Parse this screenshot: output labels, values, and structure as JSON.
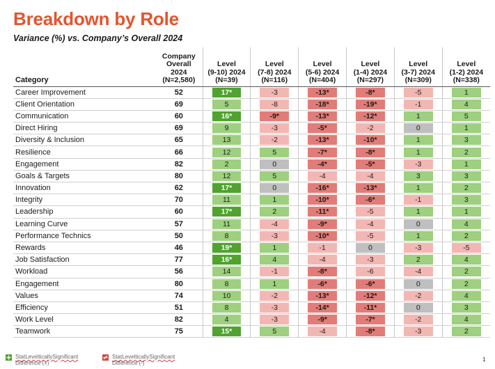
{
  "chart_data": {
    "type": "table",
    "title": "Breakdown by Role",
    "subtitle": "Variance (%) vs. Company’s Overall 2024",
    "category_header": "Category",
    "overall_header": [
      "Company",
      "Overall",
      "2024",
      "(N=2,580)"
    ],
    "level_headers": [
      [
        "Level",
        "(9-10) 2024",
        "(N=39)"
      ],
      [
        "Level",
        "(7-8) 2024",
        "(N=116)"
      ],
      [
        "Level",
        "(5-6) 2024",
        "(N=404)"
      ],
      [
        "Level",
        "(1-4) 2024",
        "(N=297)"
      ],
      [
        "Level",
        "(3-7) 2024",
        "(N=309)"
      ],
      [
        "Level",
        "(1-2) 2024",
        "(N=338)"
      ]
    ],
    "rows": [
      {
        "category": "Career Improvement",
        "overall": "52",
        "values": [
          "17*",
          "-3",
          "-13*",
          "-8*",
          "-5",
          "1"
        ]
      },
      {
        "category": "Client Orientation",
        "overall": "69",
        "values": [
          "5",
          "-8",
          "-18*",
          "-19*",
          "-1",
          "4"
        ]
      },
      {
        "category": "Communication",
        "overall": "60",
        "values": [
          "16*",
          "-9*",
          "-13*",
          "-12*",
          "1",
          "5"
        ]
      },
      {
        "category": "Direct Hiring",
        "overall": "69",
        "values": [
          "9",
          "-3",
          "-5*",
          "-2",
          "0",
          "1"
        ]
      },
      {
        "category": "Diversity & Inclusion",
        "overall": "65",
        "values": [
          "13",
          "-2",
          "-13*",
          "-10*",
          "1",
          "3"
        ]
      },
      {
        "category": "Resilience",
        "overall": "66",
        "values": [
          "12",
          "5",
          "-7*",
          "-8*",
          "1",
          "2"
        ]
      },
      {
        "category": "Engagement",
        "overall": "82",
        "values": [
          "2",
          "0",
          "-4*",
          "-5*",
          "-3",
          "1"
        ]
      },
      {
        "category": "Goals & Targets",
        "overall": "80",
        "values": [
          "12",
          "5",
          "-4",
          "-4",
          "3",
          "3"
        ]
      },
      {
        "category": "Innovation",
        "overall": "62",
        "values": [
          "17*",
          "0",
          "-16*",
          "-13*",
          "1",
          "2"
        ]
      },
      {
        "category": "Integrity",
        "overall": "70",
        "values": [
          "11",
          "1",
          "-10*",
          "-6*",
          "-1",
          "3"
        ]
      },
      {
        "category": "Leadership",
        "overall": "60",
        "values": [
          "17*",
          "2",
          "-11*",
          "-5",
          "1",
          "1"
        ]
      },
      {
        "category": "Learning Curve",
        "overall": "57",
        "values": [
          "11",
          "-4",
          "-9*",
          "-4",
          "0",
          "4"
        ]
      },
      {
        "category": "Performance Technics",
        "overall": "50",
        "values": [
          "8",
          "-3",
          "-10*",
          "-5",
          "1",
          "2"
        ]
      },
      {
        "category": "Rewards",
        "overall": "46",
        "values": [
          "19*",
          "1",
          "-1",
          "0",
          "-3",
          "-5"
        ]
      },
      {
        "category": "Job Satisfaction",
        "overall": "77",
        "values": [
          "16*",
          "4",
          "-4",
          "-3",
          "2",
          "4"
        ]
      },
      {
        "category": "Workload",
        "overall": "56",
        "values": [
          "14",
          "-1",
          "-8*",
          "-6",
          "-4",
          "2"
        ]
      },
      {
        "category": "Engagement",
        "overall": "80",
        "values": [
          "8",
          "1",
          "-6*",
          "-6*",
          "0",
          "2"
        ]
      },
      {
        "category": "Values",
        "overall": "74",
        "values": [
          "10",
          "-2",
          "-13*",
          "-12*",
          "-2",
          "4"
        ]
      },
      {
        "category": "Efficiency",
        "overall": "51",
        "values": [
          "8",
          "-3",
          "-14*",
          "-11*",
          "0",
          "3"
        ]
      },
      {
        "category": "Work Level",
        "overall": "82",
        "values": [
          "4",
          "-3",
          "-9*",
          "-7*",
          "-2",
          "4"
        ]
      },
      {
        "category": "Teamwork",
        "overall": "75",
        "values": [
          "15*",
          "5",
          "-4",
          "-8*",
          "-3",
          "2"
        ]
      }
    ],
    "colors": {
      "positive_strong": "#4fa32e",
      "positive_light": "#9ed07f",
      "negative_strong": "#e27c78",
      "negative_light": "#f3b7b3",
      "zero": "#bfbfbf"
    }
  },
  "legend": {
    "positive_line1": "StatLevelticallySignificant",
    "positive_line2": "Difference (+)",
    "negative_line1": "StatLevelticallySignificant",
    "negative_line2": "Difference (-)"
  },
  "page_number": "1"
}
